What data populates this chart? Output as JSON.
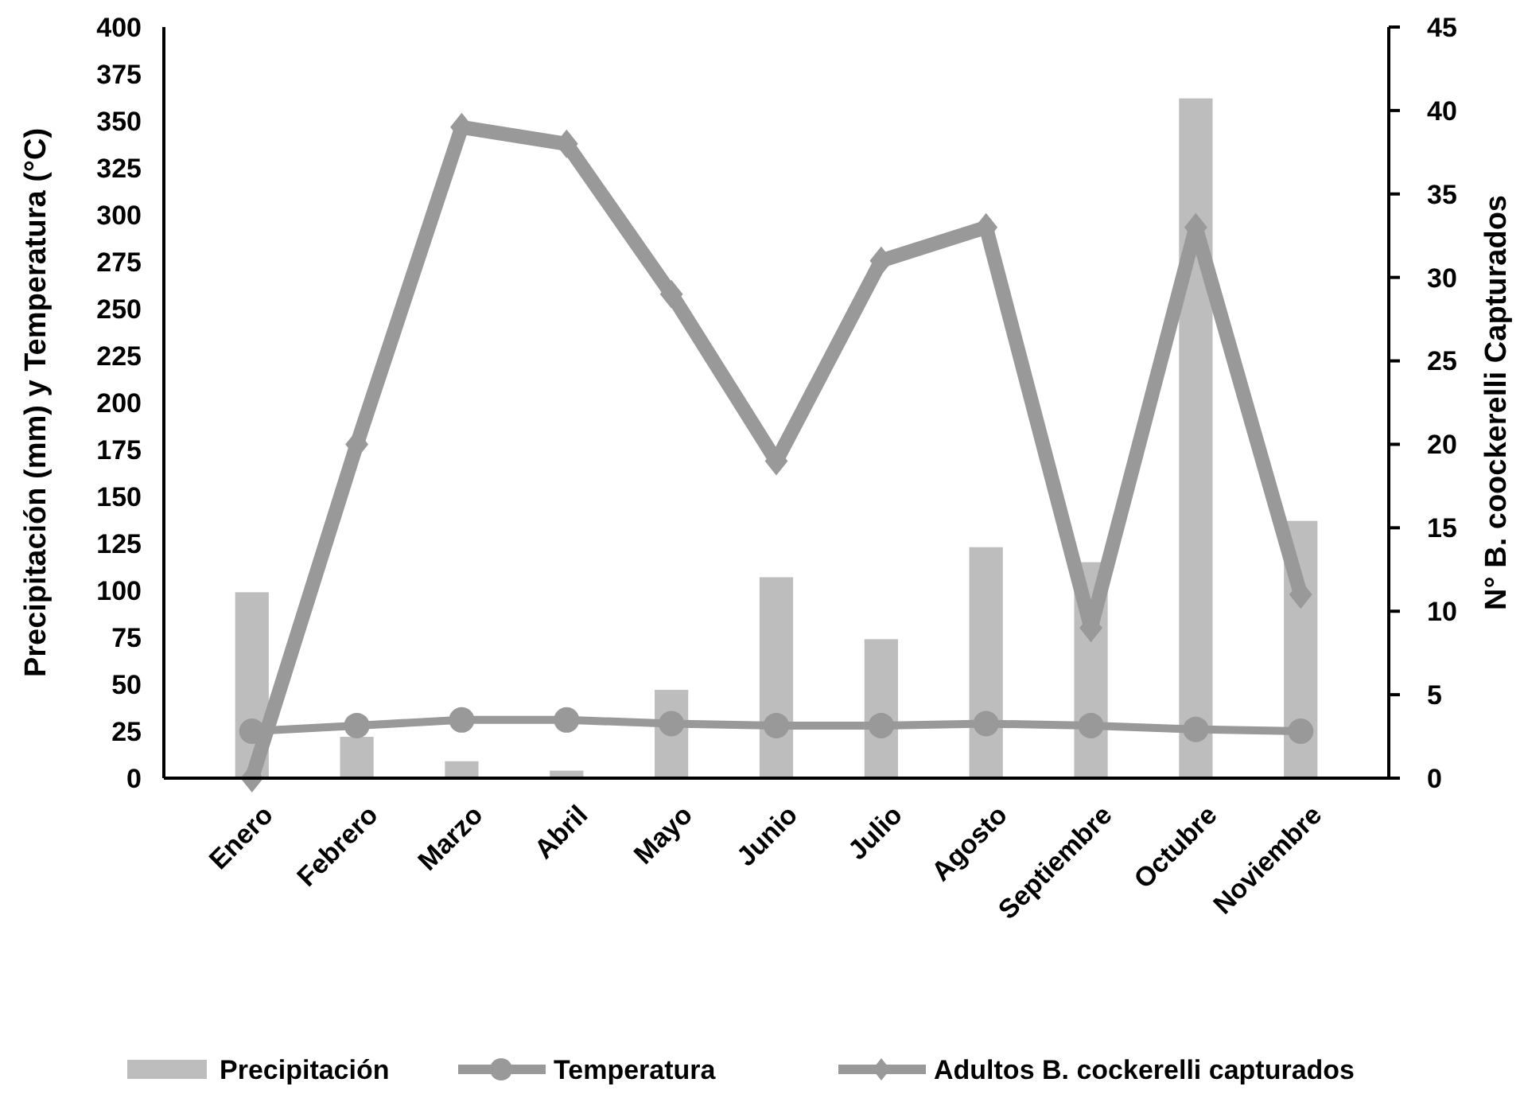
{
  "chart_data": {
    "type": "bar",
    "ylabel": "Precipitación (mm) y Temperatura (°C)",
    "y2label": "N° B. coockerelli  Capturados",
    "categories": [
      "Enero",
      "Febrero",
      "Marzo",
      "Abril",
      "Mayo",
      "Junio",
      "Julio",
      "Agosto",
      "Septiembre",
      "Octubre",
      "Noviembre"
    ],
    "series": [
      {
        "name": "Precipitación",
        "color": "#bdbdbd",
        "values": [
          99,
          22,
          9,
          4,
          47,
          107,
          74,
          123,
          115,
          362,
          137
        ]
      },
      {
        "name": "Temperatura",
        "type": "line",
        "color": "#999999",
        "marker": "circle",
        "values": [
          25,
          28,
          31,
          31,
          29,
          28,
          28,
          29,
          28,
          26,
          25
        ]
      },
      {
        "name": "Adultos B. cockerelli capturados",
        "type": "line",
        "axis": "y2",
        "color": "#999999",
        "marker": "diamond",
        "values": [
          0,
          20,
          39,
          38,
          29,
          19,
          31,
          33,
          9,
          33,
          11
        ]
      }
    ],
    "ylim": [
      0,
      400
    ],
    "yticks": [
      0,
      25,
      50,
      75,
      100,
      125,
      150,
      175,
      200,
      225,
      250,
      275,
      300,
      325,
      350,
      375,
      400
    ],
    "y2lim": [
      0,
      45
    ],
    "y2ticks": [
      0,
      5,
      10,
      15,
      20,
      25,
      30,
      35,
      40,
      45
    ],
    "line_style": "solid",
    "grid": false,
    "legend": "bottom"
  }
}
